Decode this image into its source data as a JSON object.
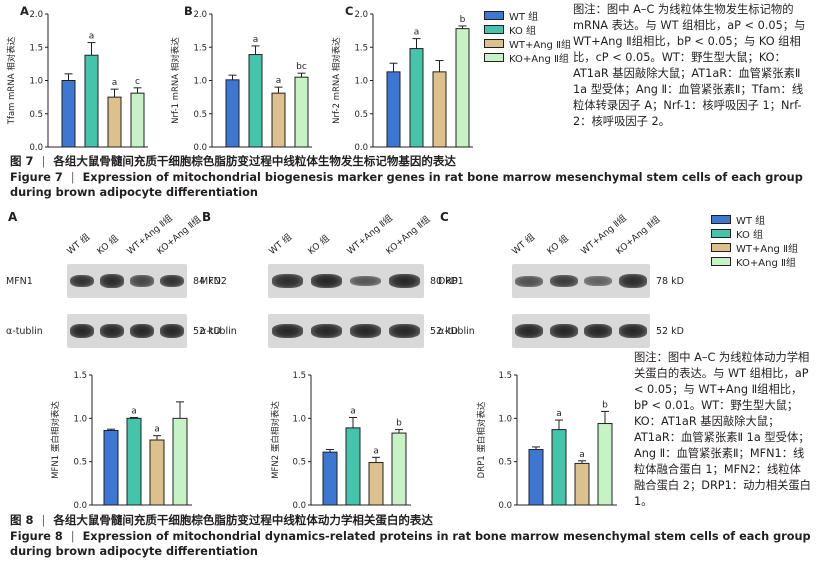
{
  "colors": {
    "wt": "#3d77d4",
    "ko": "#45c4ac",
    "wt_ang": "#dcc18c",
    "ko_ang": "#c6f2c5",
    "stroke": "#231f20"
  },
  "legend": {
    "items": [
      "WT 组",
      "KO 组",
      "WT+Ang Ⅱ组",
      "KO+Ang Ⅱ组"
    ]
  },
  "figure7": {
    "charts": [
      {
        "type": "bar",
        "letter": "A",
        "ylabel": "Tfam mRNA 相对表达",
        "ylim": [
          0,
          2.0
        ],
        "yticks": [
          0.0,
          0.5,
          1.0,
          1.5,
          2.0
        ],
        "series": [
          {
            "values": [
              1.0,
              1.38,
              0.75,
              0.81
            ],
            "errors": [
              0.1,
              0.19,
              0.12,
              0.08
            ]
          }
        ],
        "annotations": [
          "",
          "a",
          "a",
          "c"
        ]
      },
      {
        "type": "bar",
        "letter": "B",
        "ylabel": "Nrf-1 mRNA 相对表达",
        "ylim": [
          0,
          2.0
        ],
        "yticks": [
          0.0,
          0.5,
          1.0,
          1.5,
          2.0
        ],
        "series": [
          {
            "values": [
              1.01,
              1.39,
              0.81,
              1.05
            ],
            "errors": [
              0.07,
              0.13,
              0.09,
              0.06
            ]
          }
        ],
        "annotations": [
          "",
          "a",
          "a",
          "bc"
        ]
      },
      {
        "type": "bar",
        "letter": "C",
        "ylabel": "Nrf-2 mRNA 相对表达",
        "ylim": [
          0,
          2.0
        ],
        "yticks": [
          0.0,
          0.5,
          1.0,
          1.5,
          2.0
        ],
        "series": [
          {
            "values": [
              1.13,
              1.48,
              1.13,
              1.78
            ],
            "errors": [
              0.13,
              0.15,
              0.17,
              0.04
            ]
          }
        ],
        "annotations": [
          "",
          "a",
          "",
          "b"
        ]
      }
    ],
    "note": "图注：图中 A–C 为线粒体生物发生标记物的 mRNA 表达。与 WT 组相比，aP < 0.05；与 WT+Ang Ⅱ组相比，bP < 0.05；与 KO 组相比，cP < 0.05。WT：野生型大鼠；KO：AT1aR 基因敲除大鼠；AT1aR：血管紧张素Ⅱ 1a 型受体；Ang Ⅱ：血管紧张素Ⅱ；Tfam：线粒体转录因子 A；Nrf-1：核呼吸因子 1；Nrf-2：核呼吸因子 2。",
    "caption_cn_num": "图 7",
    "caption_cn": "各组大鼠骨髓间充质干细胞棕色脂肪变过程中线粒体生物发生标记物基因的表达",
    "caption_en_num": "Figure 7",
    "caption_en": "Expression of mitochondrial biogenesis marker genes in rat bone marrow mesenchymal stem cells of each group during brown adipocyte differentiation"
  },
  "figure8": {
    "lanes": [
      "WT 组",
      "KO 组",
      "WT+Ang Ⅱ组",
      "KO+Ang Ⅱ组"
    ],
    "blots": [
      {
        "letter": "A",
        "protein": "MFN1",
        "protein_kd": "84 kD",
        "loading": "α-tublin",
        "loading_kd": "52 kD",
        "band_intensity": [
          0.8,
          0.85,
          0.6,
          0.8
        ]
      },
      {
        "letter": "B",
        "protein": "MFN2",
        "protein_kd": "80 kD",
        "loading": "α-tublin",
        "loading_kd": "52 kD",
        "band_intensity": [
          0.85,
          0.9,
          0.45,
          0.9
        ]
      },
      {
        "letter": "C",
        "protein": "DRP1",
        "protein_kd": "78 kD",
        "loading": "α-tublin",
        "loading_kd": "52 kD",
        "band_intensity": [
          0.5,
          0.7,
          0.35,
          0.85
        ]
      }
    ],
    "charts": [
      {
        "type": "bar",
        "ylabel": "MFN1 蛋白相对表达",
        "ylim": [
          0,
          1.5
        ],
        "yticks": [
          0.0,
          0.5,
          1.0,
          1.5
        ],
        "series": [
          {
            "values": [
              0.86,
              1.0,
              0.75,
              1.0
            ],
            "errors": [
              0.015,
              0.01,
              0.05,
              0.19
            ]
          }
        ],
        "annotations": [
          "",
          "a",
          "a",
          ""
        ]
      },
      {
        "type": "bar",
        "ylabel": "MFN2 蛋白相对表达",
        "ylim": [
          0,
          1.5
        ],
        "yticks": [
          0.0,
          0.5,
          1.0,
          1.5
        ],
        "series": [
          {
            "values": [
              0.61,
              0.89,
              0.49,
              0.83
            ],
            "errors": [
              0.03,
              0.12,
              0.06,
              0.04
            ]
          }
        ],
        "annotations": [
          "",
          "a",
          "a",
          "b"
        ]
      },
      {
        "type": "bar",
        "ylabel": "DRP1 蛋白相对表达",
        "ylim": [
          0,
          1.5
        ],
        "yticks": [
          0.0,
          0.5,
          1.0,
          1.5
        ],
        "series": [
          {
            "values": [
              0.64,
              0.87,
              0.48,
              0.94
            ],
            "errors": [
              0.03,
              0.11,
              0.03,
              0.14
            ]
          }
        ],
        "annotations": [
          "",
          "a",
          "a",
          "b"
        ]
      }
    ],
    "note": "图注：图中 A–C 为线粒体动力学相关蛋白的表达。与 WT 组相比，aP < 0.05；与 WT+Ang Ⅱ组相比，bP < 0.01。WT：野生型大鼠；KO：AT1aR 基因敲除大鼠；AT1aR：血管紧张素Ⅱ 1a 型受体；Ang Ⅱ：血管紧张素Ⅱ；MFN1：线粒体融合蛋白 1；MFN2：线粒体融合蛋白 2；DRP1：动力相关蛋白 1。",
    "caption_cn_num": "图 8",
    "caption_cn": "各组大鼠骨髓间充质干细胞棕色脂肪变过程中线粒体动力学相关蛋白的表达",
    "caption_en_num": "Figure 8",
    "caption_en": "Expression of mitochondrial dynamics-related proteins in rat bone marrow mesenchymal stem cells of each group during brown adipocyte differentiation"
  }
}
